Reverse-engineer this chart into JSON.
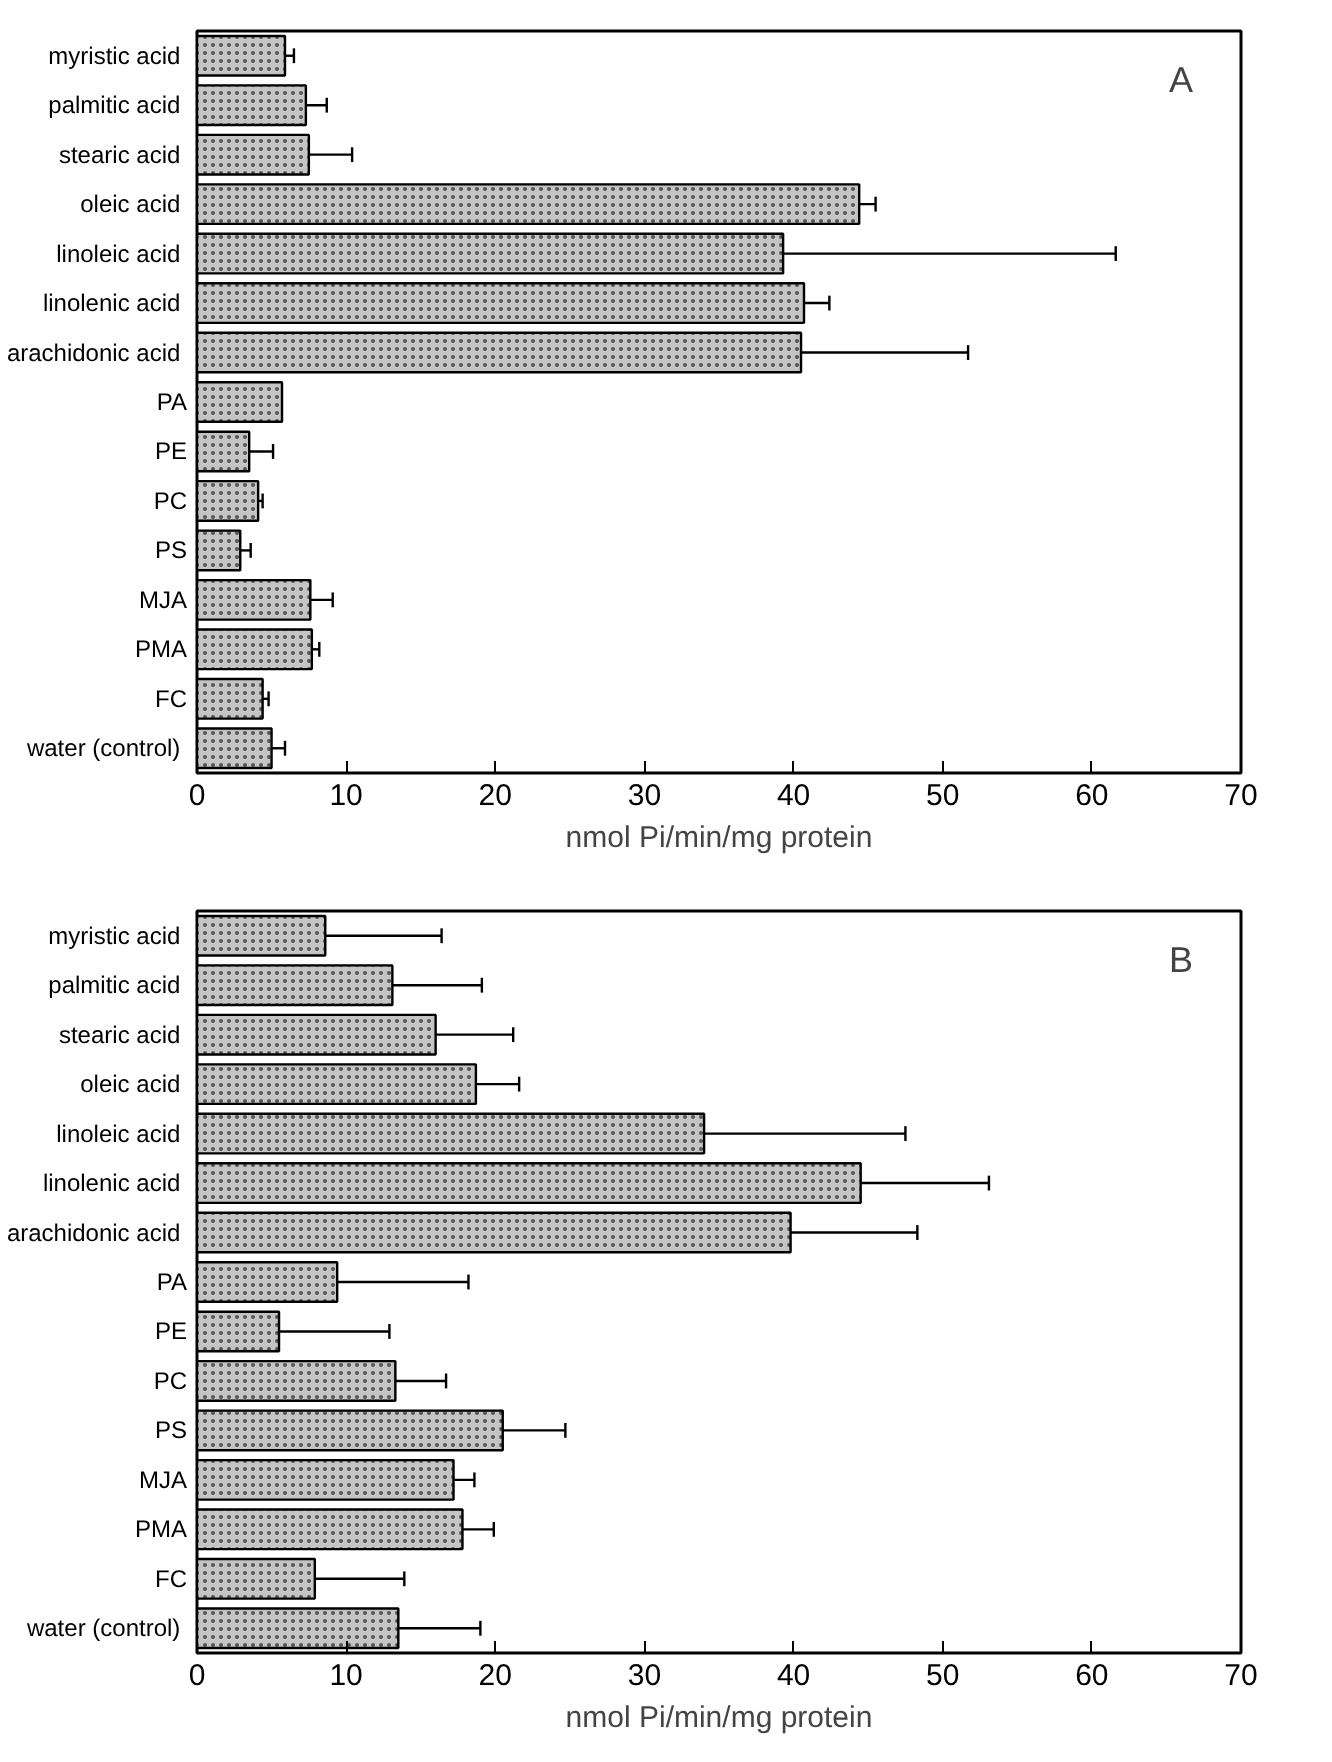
{
  "chart_data": [
    {
      "type": "bar",
      "orientation": "horizontal",
      "xlabel": "nmol Pi/min/mg protein",
      "annotations": [
        "A"
      ],
      "color": "#c4c4c4",
      "categories": [
        "myristic  acid",
        "palmitic  acid",
        "stearic  acid",
        "oleic  acid",
        "linoleic  acid",
        "linolenic  acid",
        "arachidonic  acid",
        "PA",
        "PE",
        "PC",
        "PS",
        "MJA",
        "PMA",
        "FC",
        "water  (control)"
      ],
      "values": [
        5.9,
        7.3,
        7.5,
        44.4,
        39.3,
        40.7,
        40.5,
        5.7,
        3.5,
        4.1,
        2.9,
        7.6,
        7.7,
        4.4,
        5.0
      ],
      "errors": [
        0.6,
        1.4,
        2.9,
        1.1,
        22.3,
        1.7,
        11.2,
        null,
        1.6,
        0.3,
        0.7,
        1.5,
        0.5,
        0.4,
        0.9
      ],
      "xlim": [
        0,
        70
      ],
      "xticks": [
        0,
        10,
        20,
        30,
        40,
        50,
        60,
        70
      ]
    },
    {
      "type": "bar",
      "orientation": "horizontal",
      "xlabel": "nmol Pi/min/mg protein",
      "annotations": [
        "B"
      ],
      "color": "#c4c4c4",
      "categories": [
        "myristic  acid",
        "palmitic  acid",
        "stearic  acid",
        "oleic  acid",
        "linoleic  acid",
        "linolenic  acid",
        "arachidonic  acid",
        "PA",
        "PE",
        "PC",
        "PS",
        "MJA",
        "PMA",
        "FC",
        "water  (control)"
      ],
      "values": [
        8.6,
        13.1,
        16.0,
        18.7,
        34.0,
        44.5,
        39.8,
        9.4,
        5.5,
        13.3,
        20.5,
        17.2,
        17.8,
        7.9,
        13.5
      ],
      "errors": [
        7.8,
        6.0,
        5.2,
        2.9,
        13.5,
        8.6,
        8.5,
        8.8,
        7.4,
        3.4,
        4.2,
        1.4,
        2.1,
        6.0,
        5.5
      ],
      "xlim": [
        0,
        70
      ],
      "xticks": [
        0,
        10,
        20,
        30,
        40,
        50,
        60,
        70
      ]
    }
  ]
}
